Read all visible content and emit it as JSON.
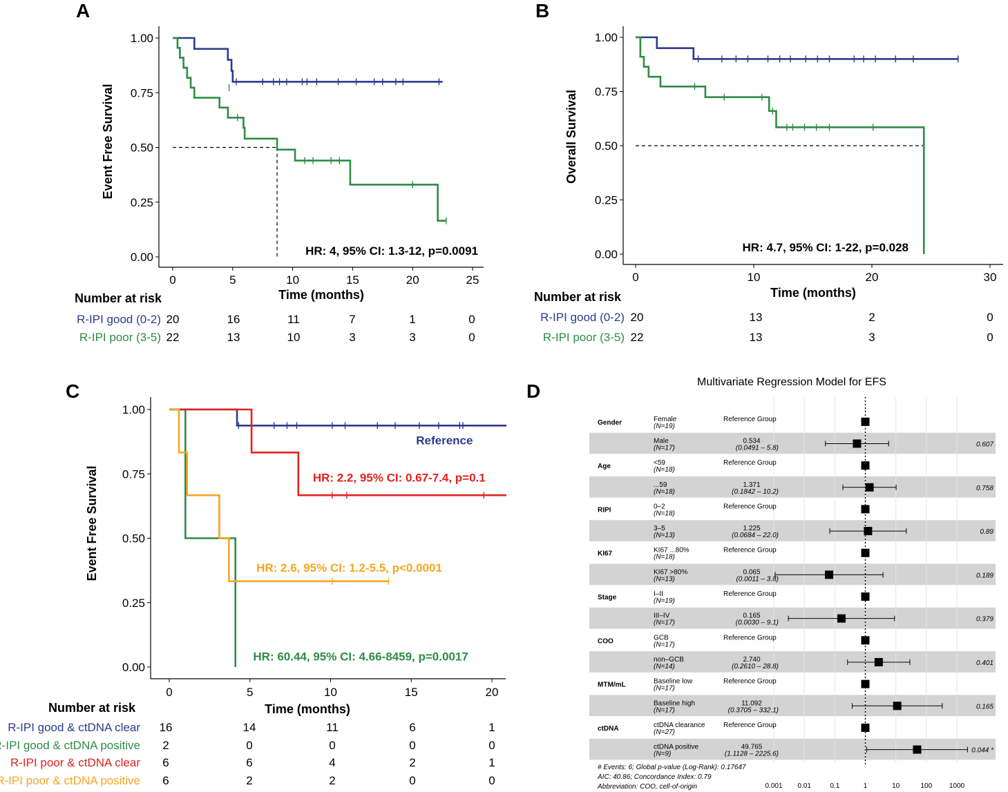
{
  "colors": {
    "blue": "#2b3a8f",
    "green": "#2e8b44",
    "red": "#e5211c",
    "orange": "#f5a623",
    "band": "#d3d3d3"
  },
  "chart_data": [
    {
      "panel": "A",
      "type": "line",
      "subtype": "kaplan-meier",
      "xlabel": "Time (months)",
      "ylabel": "Event Free Survival",
      "xlim": [
        0,
        25
      ],
      "ylim": [
        0,
        1
      ],
      "xticks": [
        "0",
        "5",
        "10",
        "15",
        "20",
        "25"
      ],
      "yticks": [
        "0.00",
        "0.25",
        "0.50",
        "0.75",
        "1.00"
      ],
      "median_line": {
        "y": 0.5,
        "x": 8.7
      },
      "annotation": "HR: 4, 95% CI: 1.3-12, p=0.0091",
      "series": [
        {
          "name": "R-IPI good (0-2)",
          "color": "blue",
          "steps": [
            [
              0,
              1.0
            ],
            [
              1.8,
              0.95
            ],
            [
              4.6,
              0.9
            ],
            [
              4.9,
              0.85
            ],
            [
              5.0,
              0.8
            ],
            [
              22.5,
              0.8
            ]
          ],
          "censors": [
            [
              5.3,
              0.8
            ],
            [
              7.5,
              0.8
            ],
            [
              8.4,
              0.8
            ],
            [
              8.9,
              0.8
            ],
            [
              9.5,
              0.8
            ],
            [
              10.8,
              0.8
            ],
            [
              11.2,
              0.8
            ],
            [
              12,
              0.8
            ],
            [
              13.8,
              0.8
            ],
            [
              15.3,
              0.8
            ],
            [
              16.8,
              0.8
            ],
            [
              17.5,
              0.8
            ],
            [
              18.6,
              0.8
            ],
            [
              19.2,
              0.8
            ],
            [
              22.2,
              0.8
            ]
          ]
        },
        {
          "name": "R-IPI poor (3-5)",
          "color": "green",
          "steps": [
            [
              0,
              1.0
            ],
            [
              0.4,
              0.955
            ],
            [
              0.6,
              0.91
            ],
            [
              0.9,
              0.864
            ],
            [
              1.2,
              0.818
            ],
            [
              1.5,
              0.773
            ],
            [
              1.8,
              0.727
            ],
            [
              3.9,
              0.682
            ],
            [
              4.6,
              0.636
            ],
            [
              5.9,
              0.59
            ],
            [
              6.0,
              0.54
            ],
            [
              8.7,
              0.49
            ],
            [
              10.2,
              0.44
            ],
            [
              14.8,
              0.33
            ],
            [
              22.1,
              0.165
            ],
            [
              22.8,
              0.165
            ]
          ],
          "censors": [
            [
              4.7,
              0.773
            ],
            [
              5.4,
              0.636
            ],
            [
              11.0,
              0.44
            ],
            [
              11.7,
              0.44
            ],
            [
              13.2,
              0.44
            ],
            [
              13.9,
              0.44
            ],
            [
              20.0,
              0.33
            ],
            [
              22.8,
              0.165
            ]
          ]
        }
      ],
      "risk_table": {
        "header": "Number at risk",
        "times": [
          0,
          5,
          10,
          15,
          20,
          25
        ],
        "rows": [
          {
            "label": "R-IPI good (0-2)",
            "color": "blue",
            "values": [
              "20",
              "16",
              "11",
              "7",
              "1",
              "0"
            ]
          },
          {
            "label": "R-IPI poor (3-5)",
            "color": "green",
            "values": [
              "22",
              "13",
              "10",
              "3",
              "3",
              "0"
            ]
          }
        ]
      }
    },
    {
      "panel": "B",
      "type": "line",
      "subtype": "kaplan-meier",
      "xlabel": "Time (months)",
      "ylabel": "Overall Survival",
      "xlim": [
        0,
        30
      ],
      "ylim": [
        0,
        1
      ],
      "xticks": [
        "0",
        "10",
        "20",
        "30"
      ],
      "yticks": [
        "0.00",
        "0.25",
        "0.50",
        "0.75",
        "1.00"
      ],
      "median_line": {
        "y": 0.5,
        "x": 24.4
      },
      "annotation": "HR: 4.7, 95% CI: 1-22, p=0.028",
      "series": [
        {
          "name": "R-IPI good (0-2)",
          "color": "blue",
          "steps": [
            [
              0,
              1.0
            ],
            [
              1.8,
              0.95
            ],
            [
              4.9,
              0.9
            ],
            [
              27.3,
              0.9
            ]
          ],
          "censors": [
            [
              5.3,
              0.9
            ],
            [
              7.3,
              0.9
            ],
            [
              8.5,
              0.9
            ],
            [
              9.5,
              0.9
            ],
            [
              11.2,
              0.9
            ],
            [
              12.2,
              0.9
            ],
            [
              13.1,
              0.9
            ],
            [
              14.4,
              0.9
            ],
            [
              15.4,
              0.9
            ],
            [
              16.4,
              0.9
            ],
            [
              18.5,
              0.9
            ],
            [
              19.3,
              0.9
            ],
            [
              20.3,
              0.9
            ],
            [
              22.0,
              0.9
            ],
            [
              23.5,
              0.9
            ],
            [
              27.3,
              0.9
            ]
          ]
        },
        {
          "name": "R-IPI poor (3-5)",
          "color": "green",
          "steps": [
            [
              0,
              1.0
            ],
            [
              0.4,
              0.91
            ],
            [
              0.7,
              0.864
            ],
            [
              1.1,
              0.818
            ],
            [
              2.1,
              0.773
            ],
            [
              5.9,
              0.724
            ],
            [
              11.3,
              0.66
            ],
            [
              11.9,
              0.585
            ],
            [
              24.4,
              0.585
            ],
            [
              24.4,
              0.0
            ]
          ],
          "censors": [
            [
              5.0,
              0.773
            ],
            [
              7.5,
              0.724
            ],
            [
              10.7,
              0.724
            ],
            [
              11.6,
              0.66
            ],
            [
              12.8,
              0.585
            ],
            [
              13.3,
              0.585
            ],
            [
              14.3,
              0.585
            ],
            [
              15.3,
              0.585
            ],
            [
              16.4,
              0.585
            ],
            [
              20.1,
              0.585
            ]
          ]
        }
      ],
      "risk_table": {
        "header": "Number at risk",
        "times": [
          0,
          10,
          20,
          30
        ],
        "rows": [
          {
            "label": "R-IPI good (0-2)",
            "color": "blue",
            "values": [
              "20",
              "13",
              "2",
              "0"
            ]
          },
          {
            "label": "R-IPI poor (3-5)",
            "color": "green",
            "values": [
              "22",
              "13",
              "3",
              "0"
            ]
          }
        ]
      }
    },
    {
      "panel": "C",
      "type": "line",
      "subtype": "kaplan-meier",
      "xlabel": "Time (months)",
      "ylabel": "Event Free Survival",
      "xlim": [
        0,
        20
      ],
      "ylim": [
        0,
        1
      ],
      "xticks": [
        "0",
        "5",
        "10",
        "15",
        "20"
      ],
      "yticks": [
        "0.00",
        "0.25",
        "0.50",
        "0.75",
        "1.00"
      ],
      "annotations": [
        {
          "text": "Reference",
          "color": "blue",
          "x": 15.3,
          "y": 0.865
        },
        {
          "text": "HR: 2.2, 95% CI: 0.67-7.4, p=0.1",
          "color": "red",
          "x": 8.9,
          "y": 0.72
        },
        {
          "text": "HR: 2.6, 95% CI: 1.2-5.5, p<0.0001",
          "color": "orange",
          "x": 5.4,
          "y": 0.37
        },
        {
          "text": "HR: 60.44, 95% CI: 4.66-8459, p=0.0017",
          "color": "green",
          "x": 5.2,
          "y": 0.025
        }
      ],
      "series": [
        {
          "name": "R-IPI good & ctDNA clear",
          "color": "blue",
          "steps": [
            [
              0,
              1.0
            ],
            [
              4.2,
              0.9375
            ],
            [
              20.9,
              0.9375
            ]
          ],
          "censors": [
            [
              4.3,
              0.9375
            ],
            [
              6.5,
              0.9375
            ],
            [
              7.3,
              0.9375
            ],
            [
              7.9,
              0.9375
            ],
            [
              10.1,
              0.9375
            ],
            [
              10.9,
              0.9375
            ],
            [
              12.9,
              0.9375
            ],
            [
              14.0,
              0.9375
            ],
            [
              15.5,
              0.9375
            ],
            [
              16.7,
              0.9375
            ],
            [
              18.0,
              0.9375
            ],
            [
              18.2,
              0.9375
            ]
          ]
        },
        {
          "name": "R-IPI good & ctDNA positive",
          "color": "green",
          "steps": [
            [
              0,
              1.0
            ],
            [
              1.0,
              0.5
            ],
            [
              4.1,
              0.0
            ]
          ],
          "censors": []
        },
        {
          "name": "R-IPI poor & ctDNA clear",
          "color": "red",
          "steps": [
            [
              0,
              1.0
            ],
            [
              5.1,
              0.833
            ],
            [
              8.0,
              0.667
            ],
            [
              20.9,
              0.667
            ]
          ],
          "censors": [
            [
              10.1,
              0.667
            ],
            [
              11.0,
              0.667
            ],
            [
              19.5,
              0.667
            ]
          ]
        },
        {
          "name": "R-IPI poor & ctDNA positive",
          "color": "orange",
          "steps": [
            [
              0,
              1.0
            ],
            [
              0.6,
              0.833
            ],
            [
              1.1,
              0.667
            ],
            [
              3.1,
              0.5
            ],
            [
              3.7,
              0.333
            ],
            [
              13.6,
              0.333
            ]
          ],
          "censors": [
            [
              10.1,
              0.333
            ],
            [
              13.6,
              0.333
            ]
          ]
        }
      ],
      "risk_table": {
        "header": "Number at risk",
        "times": [
          0,
          5,
          10,
          15,
          20
        ],
        "rows": [
          {
            "label": "R-IPI good & ctDNA clear",
            "color": "blue",
            "values": [
              "16",
              "14",
              "11",
              "6",
              "1"
            ]
          },
          {
            "label": "R-IPI good & ctDNA positive",
            "color": "green",
            "values": [
              "2",
              "0",
              "0",
              "0",
              "0"
            ]
          },
          {
            "label": "R-IPI poor & ctDNA clear",
            "color": "red",
            "values": [
              "6",
              "6",
              "4",
              "2",
              "1"
            ]
          },
          {
            "label": "R-IPI poor & ctDNA positive",
            "color": "orange",
            "values": [
              "6",
              "2",
              "2",
              "0",
              "0"
            ]
          }
        ]
      }
    },
    {
      "panel": "D",
      "type": "forest",
      "title": "Multivariate Regression Model for EFS",
      "x_scale": "log10",
      "xlim": [
        0.001,
        1000
      ],
      "xticks": [
        "0.001",
        "0.01",
        "0.1",
        "1",
        "10",
        "100",
        "1000"
      ],
      "rows": [
        {
          "group": "Gender",
          "level": "Female",
          "n": "(N=19)",
          "ref": "Reference Group"
        },
        {
          "group": "",
          "level": "Male",
          "n": "(N=17)",
          "hr": 0.534,
          "hr_text": "0.534",
          "ci_text": "(0.0491 –    5.8)",
          "lo": 0.0491,
          "hi": 5.8,
          "p": "0.607"
        },
        {
          "group": "Age",
          "level": "<59",
          "n": "(N=18)",
          "ref": "Reference Group"
        },
        {
          "group": "",
          "level": "...59",
          "n": "(N=18)",
          "hr": 1.371,
          "hr_text": "1.371",
          "ci_text": "(0.1842 –   10.2)",
          "lo": 0.1842,
          "hi": 10.2,
          "p": "0.758"
        },
        {
          "group": "RIPI",
          "level": "0–2",
          "n": "(N=18)",
          "ref": "Reference Group"
        },
        {
          "group": "",
          "level": "3–5",
          "n": "(N=13)",
          "hr": 1.225,
          "hr_text": "1.225",
          "ci_text": "(0.0684 –   22.0)",
          "lo": 0.0684,
          "hi": 22.0,
          "p": "0.89"
        },
        {
          "group": "KI67",
          "level": "KI67 ...80%",
          "n": "(N=18)",
          "ref": "Reference Group"
        },
        {
          "group": "",
          "level": "KI67 >80%",
          "n": "(N=13)",
          "hr": 0.065,
          "hr_text": "0.065",
          "ci_text": "(0.0011 –    3.8)",
          "lo": 0.0011,
          "hi": 3.8,
          "p": "0.189"
        },
        {
          "group": "Stage",
          "level": "I–II",
          "n": "(N=19)",
          "ref": "Reference Group"
        },
        {
          "group": "",
          "level": "III–IV",
          "n": "(N=17)",
          "hr": 0.165,
          "hr_text": "0.165",
          "ci_text": "(0.0030 –    9.1)",
          "lo": 0.003,
          "hi": 9.1,
          "p": "0.379"
        },
        {
          "group": "COO",
          "level": "GCB",
          "n": "(N=17)",
          "ref": "Reference Group"
        },
        {
          "group": "",
          "level": "non–GCB",
          "n": "(N=14)",
          "hr": 2.74,
          "hr_text": "2.740",
          "ci_text": "(0.2610 –   28.8)",
          "lo": 0.261,
          "hi": 28.8,
          "p": "0.401"
        },
        {
          "group": "MTM/mL",
          "level": "Baseline low",
          "n": "(N=17)",
          "ref": "Reference Group"
        },
        {
          "group": "",
          "level": "Baseline high",
          "n": "(N=17)",
          "hr": 11.092,
          "hr_text": "11.092",
          "ci_text": "(0.3705 –  332.1)",
          "lo": 0.3705,
          "hi": 332.1,
          "p": "0.165"
        },
        {
          "group": "ctDNA",
          "level": "ctDNA clearance",
          "n": "(N=27)",
          "ref": "Reference Group"
        },
        {
          "group": "",
          "level": "ctDNA positive",
          "n": "(N=9)",
          "hr": 49.765,
          "hr_text": "49.765",
          "ci_text": "(1.1128 – 2225.6)",
          "lo": 1.1128,
          "hi": 2225.6,
          "p": "0.044 *"
        }
      ],
      "footnotes": [
        "# Events: 6; Global p-value (Log-Rank): 0.17647",
        "AIC: 40.86; Concordance Index: 0.79",
        "Abbreviation: COO, cell-of-origin"
      ]
    }
  ]
}
